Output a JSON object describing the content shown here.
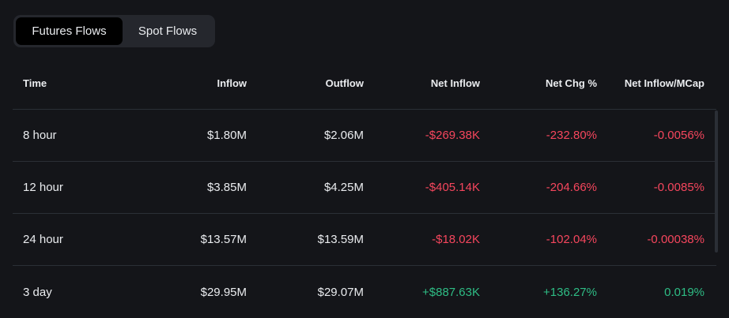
{
  "tabs": [
    {
      "label": "Futures Flows",
      "active": true
    },
    {
      "label": "Spot Flows",
      "active": false
    }
  ],
  "table": {
    "headers": {
      "time": "Time",
      "inflow": "Inflow",
      "outflow": "Outflow",
      "net_inflow": "Net Inflow",
      "net_chg": "Net Chg %",
      "net_inflow_mcap": "Net Inflow/MCap"
    },
    "rows": [
      {
        "time": "8 hour",
        "inflow": "$1.80M",
        "outflow": "$2.06M",
        "net_inflow": "-$269.38K",
        "net_chg": "-232.80%",
        "net_inflow_mcap": "-0.0056%",
        "trend": "negative"
      },
      {
        "time": "12 hour",
        "inflow": "$3.85M",
        "outflow": "$4.25M",
        "net_inflow": "-$405.14K",
        "net_chg": "-204.66%",
        "net_inflow_mcap": "-0.0085%",
        "trend": "negative"
      },
      {
        "time": "24 hour",
        "inflow": "$13.57M",
        "outflow": "$13.59M",
        "net_inflow": "-$18.02K",
        "net_chg": "-102.04%",
        "net_inflow_mcap": "-0.00038%",
        "trend": "negative"
      },
      {
        "time": "3 day",
        "inflow": "$29.95M",
        "outflow": "$29.07M",
        "net_inflow": "+$887.63K",
        "net_chg": "+136.27%",
        "net_inflow_mcap": "0.019%",
        "trend": "positive"
      }
    ]
  },
  "colors": {
    "background": "#141519",
    "negative": "#f6465d",
    "positive": "#2ebd85",
    "tab_bar": "#25272d",
    "tab_active": "#000000"
  }
}
